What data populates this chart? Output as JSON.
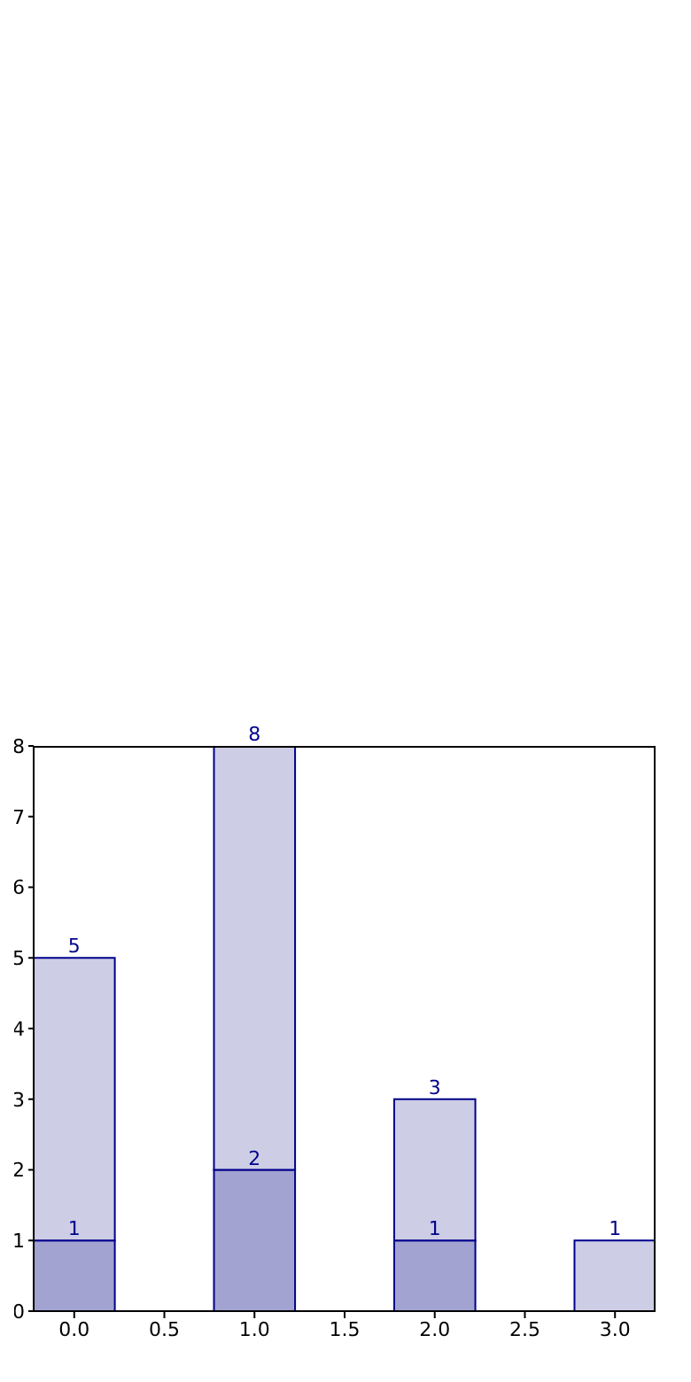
{
  "chart_data": {
    "type": "bar",
    "x": [
      0,
      1,
      2,
      3
    ],
    "stacked": true,
    "series": [
      {
        "color": "#a3a3d1",
        "values": [
          1,
          2,
          1,
          null
        ],
        "value_labels": [
          "1",
          "2",
          "1",
          null
        ]
      },
      {
        "color": "#cdcde5",
        "values": [
          4,
          6,
          2,
          1
        ]
      }
    ],
    "totals": [
      "5",
      "8",
      "3",
      "1"
    ],
    "xlim": [
      -0.225,
      3.225
    ],
    "xticks": [
      {
        "value": 0,
        "label": "0.0"
      },
      {
        "value": 0.5,
        "label": "0.5"
      },
      {
        "value": 1,
        "label": "1.0"
      },
      {
        "value": 1.5,
        "label": "1.5"
      },
      {
        "value": 2,
        "label": "2.0"
      },
      {
        "value": 2.5,
        "label": "2.5"
      },
      {
        "value": 3,
        "label": "3.0"
      }
    ],
    "ylim": [
      0,
      8
    ],
    "yticks": [
      0,
      1,
      2,
      3,
      4,
      5,
      6,
      7,
      8
    ],
    "grid": false,
    "legend": false
  }
}
